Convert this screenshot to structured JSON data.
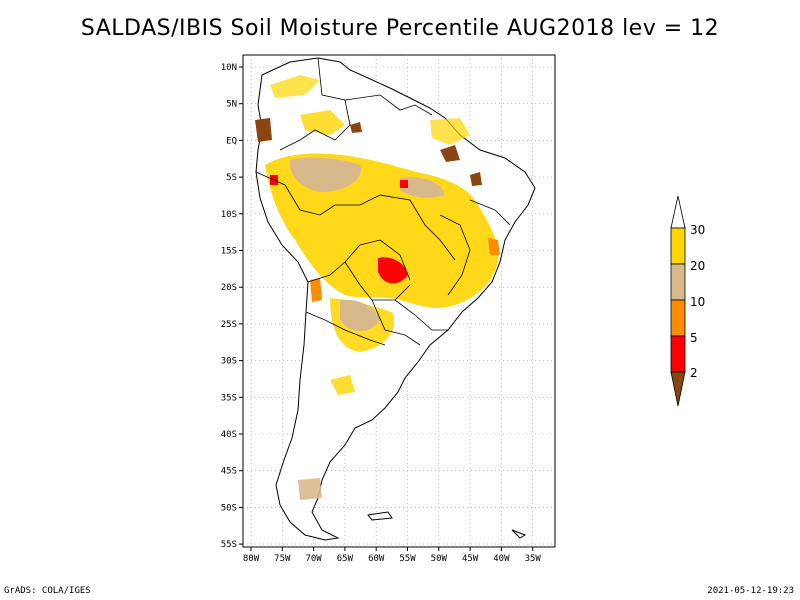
{
  "title": "SALDAS/IBIS Soil Moisture Percentile AUG2018 lev = 12",
  "footer_left": "GrADS: COLA/IGES",
  "footer_right": "2021-05-12-19:23",
  "axes": {
    "lat_labels": [
      "10N",
      "5N",
      "EQ",
      "5S",
      "10S",
      "15S",
      "20S",
      "25S",
      "30S",
      "35S",
      "40S",
      "45S",
      "50S",
      "55S"
    ],
    "lon_labels": [
      "80W",
      "75W",
      "70W",
      "65W",
      "60W",
      "55W",
      "50W",
      "45W",
      "40W",
      "35W"
    ]
  },
  "colorbar": {
    "labels": [
      "30",
      "20",
      "10",
      "5",
      "2"
    ],
    "colors": {
      "above30": "#ffffff",
      "20_30": "#ffd500",
      "10_20": "#d8b98c",
      "5_10": "#ff8c00",
      "2_5": "#ff0000",
      "below2": "#8b4513"
    }
  }
}
